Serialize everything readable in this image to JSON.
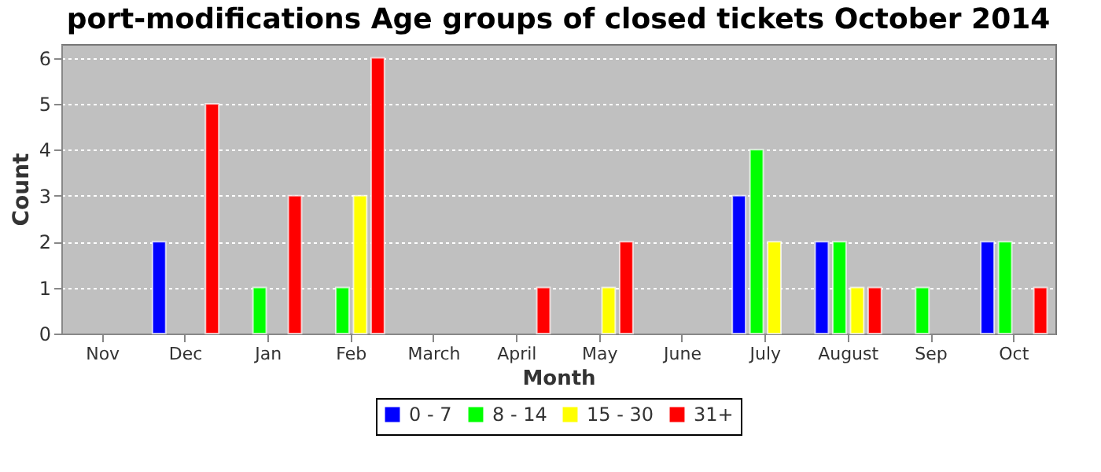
{
  "chart_data": {
    "type": "bar",
    "title": "port-modifications Age groups of closed tickets October 2014",
    "xlabel": "Month",
    "ylabel": "Count",
    "categories": [
      "Nov",
      "Dec",
      "Jan",
      "Feb",
      "March",
      "April",
      "May",
      "June",
      "July",
      "August",
      "Sep",
      "Oct"
    ],
    "series": [
      {
        "name": "0 - 7",
        "color": "#0000ff",
        "values": [
          null,
          2,
          null,
          null,
          null,
          null,
          null,
          null,
          3,
          2,
          null,
          2
        ]
      },
      {
        "name": "8 - 14",
        "color": "#00ff00",
        "values": [
          null,
          null,
          1,
          1,
          null,
          null,
          null,
          null,
          4,
          2,
          1,
          2
        ]
      },
      {
        "name": "15 - 30",
        "color": "#ffff00",
        "values": [
          null,
          null,
          null,
          3,
          null,
          null,
          1,
          null,
          2,
          1,
          null,
          null
        ]
      },
      {
        "name": "31+",
        "color": "#ff0000",
        "values": [
          null,
          5,
          3,
          6,
          null,
          1,
          2,
          null,
          null,
          1,
          null,
          1
        ]
      }
    ],
    "ylim": [
      0,
      6.3
    ],
    "yticks": [
      0,
      1,
      2,
      3,
      4,
      5,
      6
    ],
    "grid": "y",
    "legend": "bottom"
  }
}
